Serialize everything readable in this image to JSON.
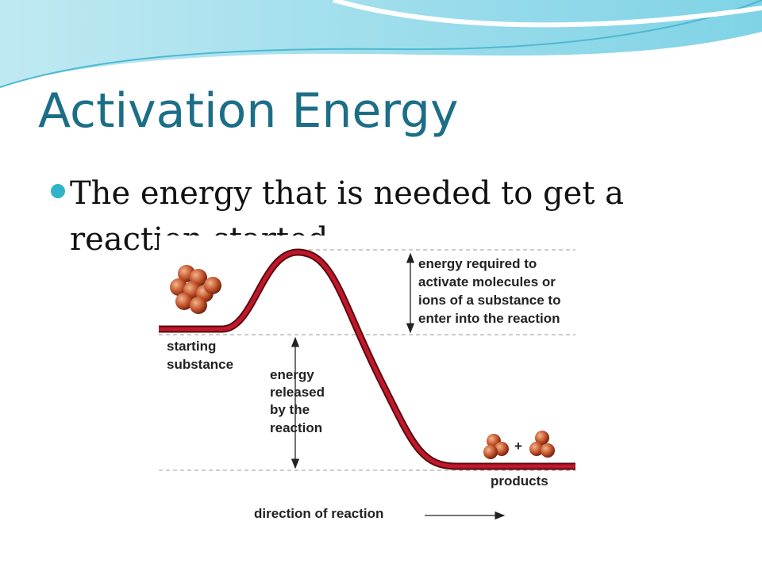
{
  "slide": {
    "title": "Activation Energy",
    "bullet": "The energy that is needed to get a reaction started.",
    "diagram": {
      "activation_label": [
        "energy required to",
        "activate molecules or",
        "ions of a substance to",
        "enter into the reaction"
      ],
      "start_label": [
        "starting",
        "substance"
      ],
      "released_label": [
        "energy",
        "released",
        "by the",
        "reaction"
      ],
      "products_label": "products",
      "plus": "+",
      "direction_label": "direction of reaction"
    }
  }
}
